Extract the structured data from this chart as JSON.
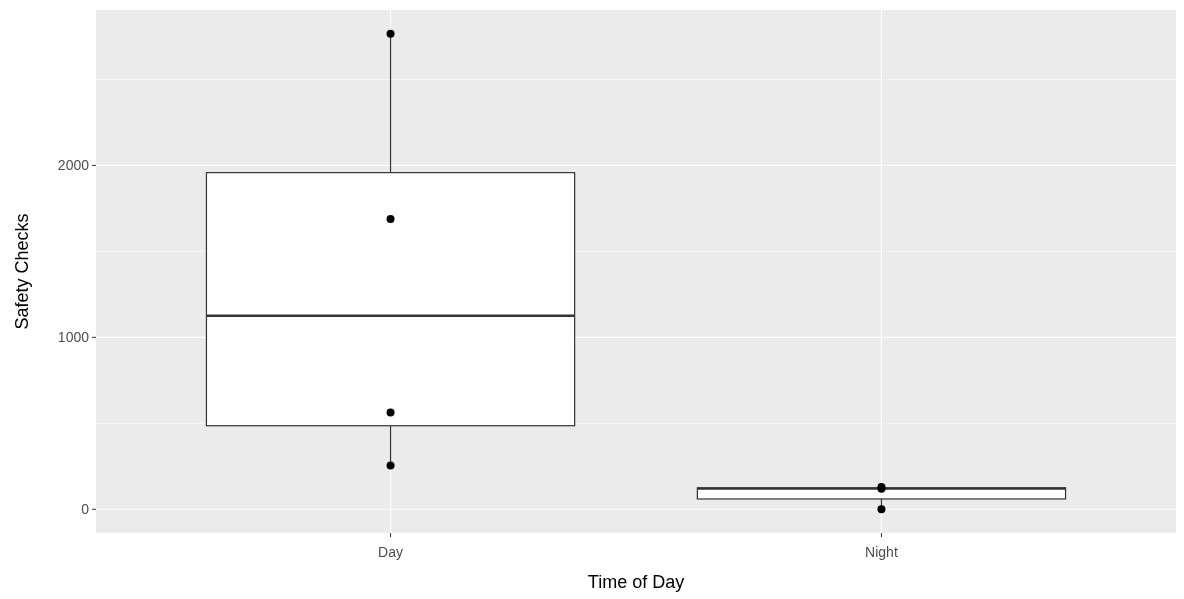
{
  "chart_data": {
    "type": "box",
    "xlabel": "Time of Day",
    "ylabel": "Safety Checks",
    "categories": [
      "Day",
      "Night"
    ],
    "boxes": [
      {
        "low": 255,
        "q1": 486,
        "median": 1126,
        "q3": 1958,
        "high": 2766
      },
      {
        "low": 0,
        "q1": 60,
        "median": 120,
        "q3": 125,
        "high": 130
      }
    ],
    "series": [
      {
        "type": "scatter",
        "color": "#000000",
        "x": [
          "Day",
          "Day",
          "Day",
          "Day",
          "Night",
          "Night",
          "Night"
        ],
        "values": [
          255,
          563,
          1689,
          2766,
          0,
          120,
          130
        ]
      }
    ],
    "ylim": [
      -138,
      2904
    ],
    "yticks": [
      0,
      1000,
      2000
    ],
    "grid": true,
    "marker": "circle"
  }
}
